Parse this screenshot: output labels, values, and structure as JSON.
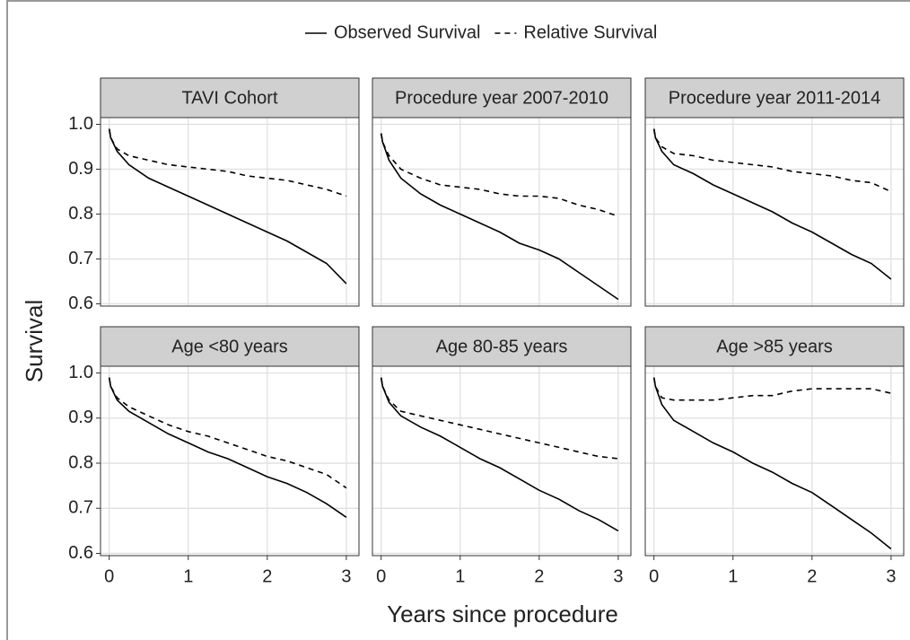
{
  "chart_data": {
    "type": "line",
    "xlabel": "Years since procedure",
    "ylabel": "Survival",
    "legend_position": "top",
    "grid": true,
    "series": [
      {
        "name": "Observed Survival",
        "color": "#000000",
        "dash": "solid"
      },
      {
        "name": "Relative Survival",
        "color": "#000000",
        "dash": "dashed"
      }
    ],
    "x": [
      0,
      0.02,
      0.1,
      0.25,
      0.5,
      0.75,
      1,
      1.25,
      1.5,
      1.75,
      2,
      2.25,
      2.5,
      2.75,
      3
    ],
    "xlim": [
      -0.11,
      3.16
    ],
    "xticks": [
      0,
      1,
      2,
      3
    ],
    "ylim": [
      0.595,
      1.015
    ],
    "yticks": [
      0.6,
      0.7,
      0.8,
      0.9,
      {
        "value": 1,
        "label": "1.0"
      }
    ],
    "facets": [
      {
        "title": "TAVI Cohort",
        "series": [
          {
            "values": [
              0.99,
              0.97,
              0.94,
              0.91,
              0.88,
              0.86,
              0.84,
              0.82,
              0.8,
              0.78,
              0.76,
              0.74,
              0.715,
              0.69,
              0.645
            ]
          },
          {
            "values": [
              0.99,
              0.97,
              0.945,
              0.93,
              0.92,
              0.91,
              0.905,
              0.9,
              0.895,
              0.885,
              0.88,
              0.875,
              0.865,
              0.855,
              0.84
            ]
          }
        ]
      },
      {
        "title": "Procedure year 2007-2010",
        "series": [
          {
            "values": [
              0.98,
              0.96,
              0.92,
              0.88,
              0.845,
              0.82,
              0.8,
              0.78,
              0.76,
              0.735,
              0.72,
              0.7,
              0.67,
              0.64,
              0.61
            ]
          },
          {
            "values": [
              0.98,
              0.96,
              0.93,
              0.9,
              0.88,
              0.865,
              0.86,
              0.855,
              0.845,
              0.84,
              0.84,
              0.835,
              0.82,
              0.81,
              0.795
            ]
          }
        ]
      },
      {
        "title": "Procedure year 2011-2014",
        "series": [
          {
            "values": [
              0.99,
              0.97,
              0.94,
              0.91,
              0.89,
              0.865,
              0.845,
              0.825,
              0.805,
              0.78,
              0.76,
              0.735,
              0.71,
              0.69,
              0.655
            ]
          },
          {
            "values": [
              0.99,
              0.97,
              0.95,
              0.935,
              0.93,
              0.92,
              0.915,
              0.91,
              0.905,
              0.895,
              0.89,
              0.885,
              0.875,
              0.87,
              0.85
            ]
          }
        ]
      },
      {
        "title": "Age <80 years",
        "series": [
          {
            "values": [
              0.99,
              0.97,
              0.94,
              0.915,
              0.89,
              0.865,
              0.845,
              0.825,
              0.81,
              0.79,
              0.77,
              0.755,
              0.735,
              0.71,
              0.68
            ]
          },
          {
            "values": [
              0.99,
              0.97,
              0.945,
              0.925,
              0.905,
              0.885,
              0.87,
              0.86,
              0.845,
              0.83,
              0.815,
              0.805,
              0.79,
              0.775,
              0.745
            ]
          }
        ]
      },
      {
        "title": "Age 80-85 years",
        "series": [
          {
            "values": [
              0.99,
              0.97,
              0.935,
              0.905,
              0.88,
              0.86,
              0.835,
              0.81,
              0.79,
              0.765,
              0.74,
              0.72,
              0.695,
              0.675,
              0.65
            ]
          },
          {
            "values": [
              0.99,
              0.97,
              0.94,
              0.915,
              0.905,
              0.895,
              0.885,
              0.875,
              0.865,
              0.855,
              0.845,
              0.835,
              0.825,
              0.815,
              0.81
            ]
          }
        ]
      },
      {
        "title": "Age >85 years",
        "series": [
          {
            "values": [
              0.99,
              0.97,
              0.93,
              0.895,
              0.87,
              0.845,
              0.825,
              0.8,
              0.78,
              0.755,
              0.735,
              0.705,
              0.675,
              0.645,
              0.61
            ]
          },
          {
            "values": [
              0.99,
              0.97,
              0.945,
              0.94,
              0.94,
              0.94,
              0.945,
              0.95,
              0.95,
              0.96,
              0.965,
              0.965,
              0.965,
              0.965,
              0.955
            ]
          }
        ]
      }
    ]
  }
}
